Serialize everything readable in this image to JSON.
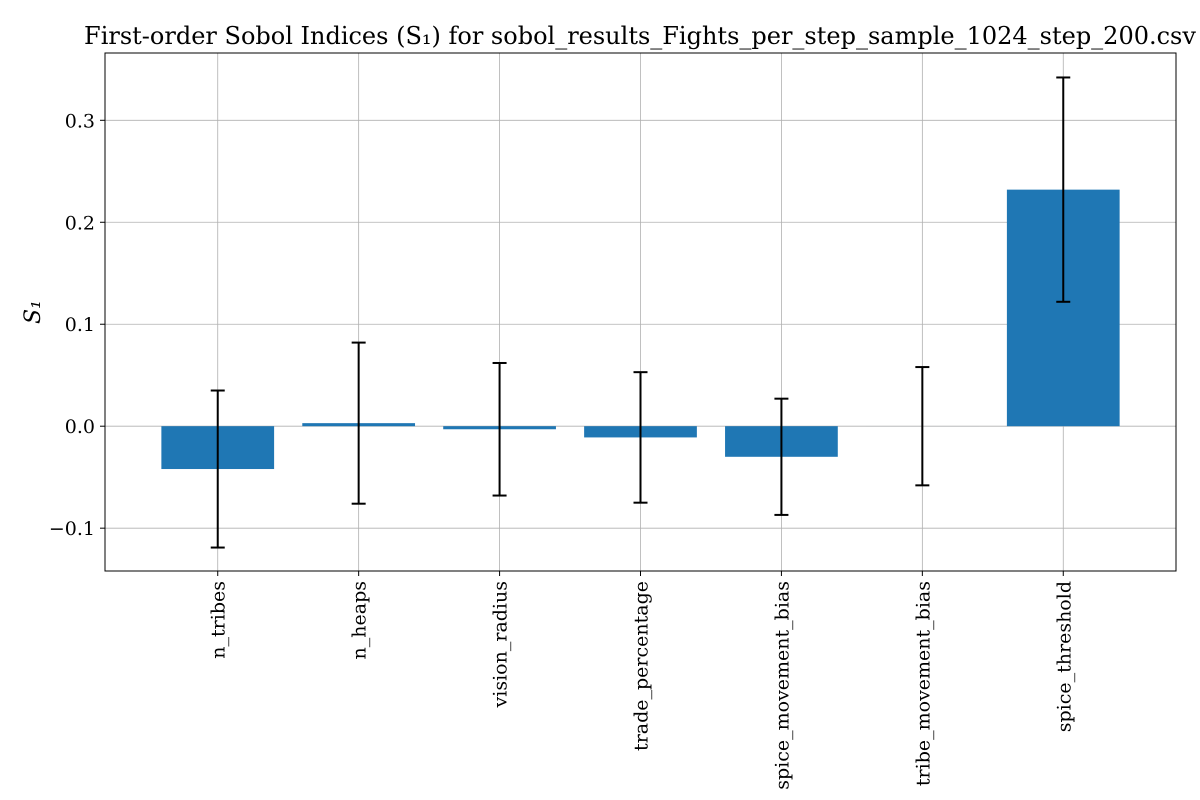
{
  "chart_data": {
    "type": "bar",
    "title": "First-order Sobol Indices (S₁) for sobol_results_Fights_per_step_sample_1024_step_200.csv",
    "xlabel": "",
    "ylabel": "S₁",
    "categories": [
      "n_tribes",
      "n_heaps",
      "vision_radius",
      "trade_percentage",
      "spice_movement_bias",
      "tribe_movement_bias",
      "spice_threshold"
    ],
    "values": [
      -0.042,
      0.003,
      -0.003,
      -0.011,
      -0.03,
      0.0,
      0.232
    ],
    "errors": [
      0.077,
      0.079,
      0.065,
      0.064,
      0.057,
      0.058,
      0.11
    ],
    "ylim": [
      -0.142,
      0.366
    ],
    "yticks": [
      -0.1,
      0.0,
      0.1,
      0.2,
      0.3
    ],
    "ytick_labels": [
      "−0.1",
      "0.0",
      "0.1",
      "0.2",
      "0.3"
    ],
    "grid": true,
    "bar_color": "#1f77b4",
    "error_color": "#000000"
  }
}
